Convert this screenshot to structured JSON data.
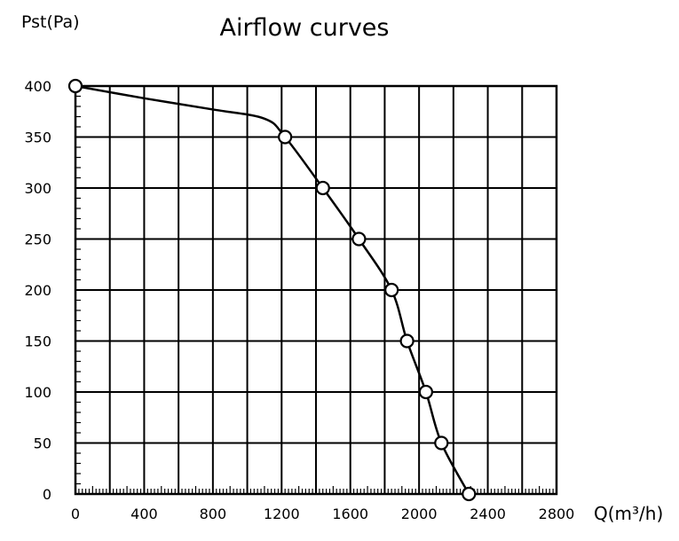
{
  "chart_data": {
    "type": "line",
    "title": "Airflow curves",
    "xlabel": "Q(m³/h)",
    "ylabel": "Pst(Pa)",
    "xlim": [
      0,
      2800
    ],
    "ylim": [
      0,
      400
    ],
    "x_ticks": [
      0,
      400,
      800,
      1200,
      1600,
      2000,
      2400,
      2800
    ],
    "y_ticks": [
      0,
      50,
      100,
      150,
      200,
      250,
      300,
      350,
      400
    ],
    "grid": true,
    "series": [
      {
        "marker": "circle",
        "points": [
          {
            "x": 0,
            "y": 400
          },
          {
            "x": 1220,
            "y": 350
          },
          {
            "x": 1440,
            "y": 300
          },
          {
            "x": 1650,
            "y": 250
          },
          {
            "x": 1840,
            "y": 200
          },
          {
            "x": 1930,
            "y": 150
          },
          {
            "x": 2040,
            "y": 100
          },
          {
            "x": 2130,
            "y": 50
          },
          {
            "x": 2290,
            "y": 0
          }
        ],
        "curve_via": [
          {
            "x": 400,
            "y": 388
          },
          {
            "x": 800,
            "y": 377
          },
          {
            "x": 1100,
            "y": 368
          }
        ]
      }
    ]
  }
}
